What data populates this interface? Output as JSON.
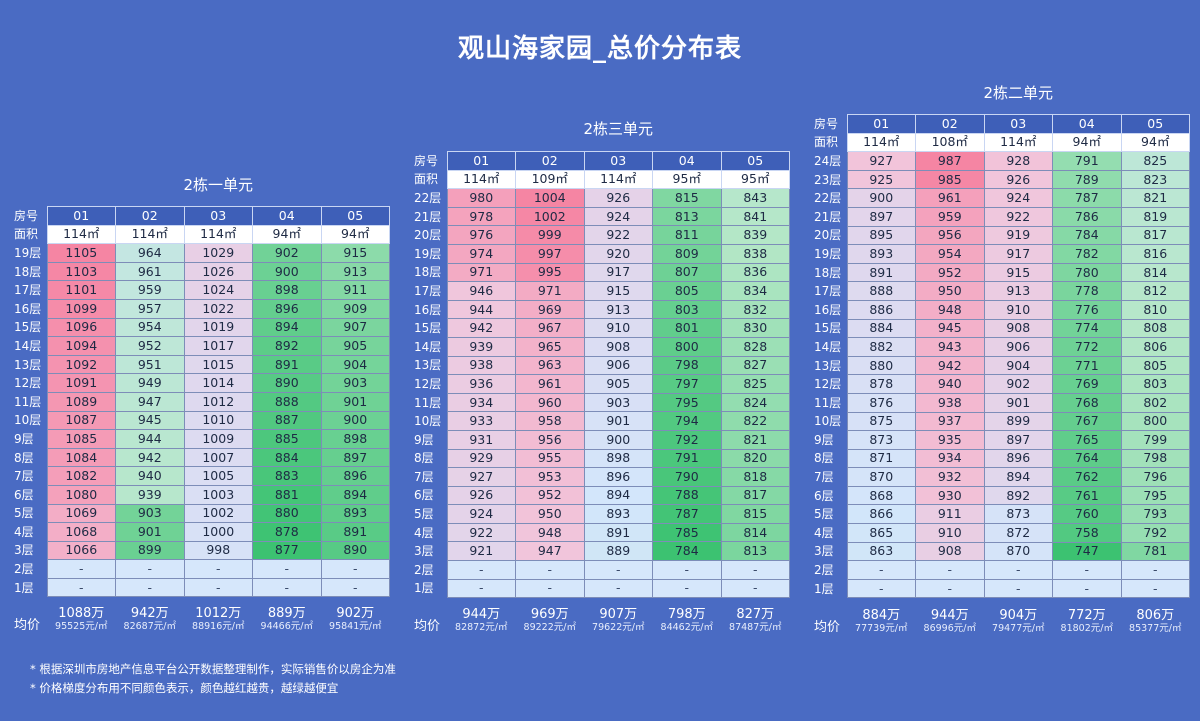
{
  "title": "观山海家园_总价分布表",
  "labels": {
    "room": "房号",
    "area": "面积",
    "avg": "均价"
  },
  "notes": [
    "* 根据深圳市房地产信息平台公开数据整理制作，实际销售价以房企为准",
    "* 价格梯度分布用不同颜色表示，颜色越红越贵，越绿越便宜"
  ],
  "scale": {
    "red": "#f585a3",
    "pink": "#f2c4da",
    "lightblue": "#d3e6fb",
    "green": "#3cc271",
    "lightgreen": "#b4e7c7"
  },
  "blocks": [
    {
      "title": "2栋一单元",
      "rooms": [
        "01",
        "02",
        "03",
        "04",
        "05"
      ],
      "areas": [
        "114㎡",
        "114㎡",
        "114㎡",
        "94㎡",
        "94㎡"
      ],
      "floors": [
        "19层",
        "18层",
        "17层",
        "16层",
        "15层",
        "14层",
        "13层",
        "12层",
        "11层",
        "10层",
        "9层",
        "8层",
        "7层",
        "6层",
        "5层",
        "4层",
        "3层",
        "2层",
        "1层"
      ],
      "prices": [
        [
          1105,
          964,
          1029,
          902,
          915
        ],
        [
          1103,
          961,
          1026,
          900,
          913
        ],
        [
          1101,
          959,
          1024,
          898,
          911
        ],
        [
          1099,
          957,
          1022,
          896,
          909
        ],
        [
          1096,
          954,
          1019,
          894,
          907
        ],
        [
          1094,
          952,
          1017,
          892,
          905
        ],
        [
          1092,
          951,
          1015,
          891,
          904
        ],
        [
          1091,
          949,
          1014,
          890,
          903
        ],
        [
          1089,
          947,
          1012,
          888,
          901
        ],
        [
          1087,
          945,
          1010,
          887,
          900
        ],
        [
          1085,
          944,
          1009,
          885,
          898
        ],
        [
          1084,
          942,
          1007,
          884,
          897
        ],
        [
          1082,
          940,
          1005,
          883,
          896
        ],
        [
          1080,
          939,
          1003,
          881,
          894
        ],
        [
          1069,
          903,
          1002,
          880,
          893
        ],
        [
          1068,
          901,
          1000,
          878,
          891
        ],
        [
          1066,
          899,
          998,
          877,
          890
        ],
        [
          "-",
          "-",
          "-",
          "-",
          "-"
        ],
        [
          "-",
          "-",
          "-",
          "-",
          "-"
        ]
      ],
      "avg_total": [
        "1088万",
        "942万",
        "1012万",
        "889万",
        "902万"
      ],
      "avg_unit": [
        "95525元/㎡",
        "82687元/㎡",
        "88916元/㎡",
        "94466元/㎡",
        "95841元/㎡"
      ]
    },
    {
      "title": "2栋三单元",
      "rooms": [
        "01",
        "02",
        "03",
        "04",
        "05"
      ],
      "areas": [
        "114㎡",
        "109㎡",
        "114㎡",
        "95㎡",
        "95㎡"
      ],
      "floors": [
        "22层",
        "21层",
        "20层",
        "19层",
        "18层",
        "17层",
        "16层",
        "15层",
        "14层",
        "13层",
        "12层",
        "11层",
        "10层",
        "9层",
        "8层",
        "7层",
        "6层",
        "5层",
        "4层",
        "3层",
        "2层",
        "1层"
      ],
      "prices": [
        [
          980,
          1004,
          926,
          815,
          843
        ],
        [
          978,
          1002,
          924,
          813,
          841
        ],
        [
          976,
          999,
          922,
          811,
          839
        ],
        [
          974,
          997,
          920,
          809,
          838
        ],
        [
          971,
          995,
          917,
          807,
          836
        ],
        [
          946,
          971,
          915,
          805,
          834
        ],
        [
          944,
          969,
          913,
          803,
          832
        ],
        [
          942,
          967,
          910,
          801,
          830
        ],
        [
          939,
          965,
          908,
          800,
          828
        ],
        [
          938,
          963,
          906,
          798,
          827
        ],
        [
          936,
          961,
          905,
          797,
          825
        ],
        [
          934,
          960,
          903,
          795,
          824
        ],
        [
          933,
          958,
          901,
          794,
          822
        ],
        [
          931,
          956,
          900,
          792,
          821
        ],
        [
          929,
          955,
          898,
          791,
          820
        ],
        [
          927,
          953,
          896,
          790,
          818
        ],
        [
          926,
          952,
          894,
          788,
          817
        ],
        [
          924,
          950,
          893,
          787,
          815
        ],
        [
          922,
          948,
          891,
          785,
          814
        ],
        [
          921,
          947,
          889,
          784,
          813
        ],
        [
          "-",
          "-",
          "-",
          "-",
          "-"
        ],
        [
          "-",
          "-",
          "-",
          "-",
          "-"
        ]
      ],
      "avg_total": [
        "944万",
        "969万",
        "907万",
        "798万",
        "827万"
      ],
      "avg_unit": [
        "82872元/㎡",
        "89222元/㎡",
        "79622元/㎡",
        "84462元/㎡",
        "87487元/㎡"
      ]
    },
    {
      "title": "2栋二单元",
      "rooms": [
        "01",
        "02",
        "03",
        "04",
        "05"
      ],
      "areas": [
        "114㎡",
        "108㎡",
        "114㎡",
        "94㎡",
        "94㎡"
      ],
      "floors": [
        "24层",
        "23层",
        "22层",
        "21层",
        "20层",
        "19层",
        "18层",
        "17层",
        "16层",
        "15层",
        "14层",
        "13层",
        "12层",
        "11层",
        "10层",
        "9层",
        "8层",
        "7层",
        "6层",
        "5层",
        "4层",
        "3层",
        "2层",
        "1层"
      ],
      "prices": [
        [
          927,
          987,
          928,
          791,
          825
        ],
        [
          925,
          985,
          926,
          789,
          823
        ],
        [
          900,
          961,
          924,
          787,
          821
        ],
        [
          897,
          959,
          922,
          786,
          819
        ],
        [
          895,
          956,
          919,
          784,
          817
        ],
        [
          893,
          954,
          917,
          782,
          816
        ],
        [
          891,
          952,
          915,
          780,
          814
        ],
        [
          888,
          950,
          913,
          778,
          812
        ],
        [
          886,
          948,
          910,
          776,
          810
        ],
        [
          884,
          945,
          908,
          774,
          808
        ],
        [
          882,
          943,
          906,
          772,
          806
        ],
        [
          880,
          942,
          904,
          771,
          805
        ],
        [
          878,
          940,
          902,
          769,
          803
        ],
        [
          876,
          938,
          901,
          768,
          802
        ],
        [
          875,
          937,
          899,
          767,
          800
        ],
        [
          873,
          935,
          897,
          765,
          799
        ],
        [
          871,
          934,
          896,
          764,
          798
        ],
        [
          870,
          932,
          894,
          762,
          796
        ],
        [
          868,
          930,
          892,
          761,
          795
        ],
        [
          866,
          911,
          873,
          760,
          793
        ],
        [
          865,
          910,
          872,
          758,
          792
        ],
        [
          863,
          908,
          870,
          747,
          781
        ],
        [
          "-",
          "-",
          "-",
          "-",
          "-"
        ],
        [
          "-",
          "-",
          "-",
          "-",
          "-"
        ]
      ],
      "avg_total": [
        "884万",
        "944万",
        "904万",
        "772万",
        "806万"
      ],
      "avg_unit": [
        "77739元/㎡",
        "86996元/㎡",
        "79477元/㎡",
        "81802元/㎡",
        "85377元/㎡"
      ]
    }
  ]
}
